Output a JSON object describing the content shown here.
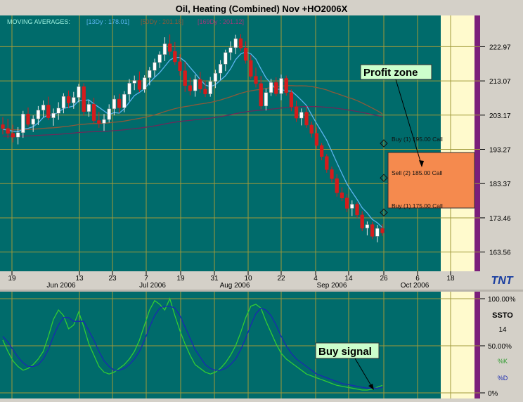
{
  "window": {
    "title": "Oil, Heating (Combined) Nov +HO2006X",
    "indicator_header": "MOVING AVERAGES:",
    "ma_labels": [
      {
        "text": "[13Dy : 178.01]",
        "color": "#5ab4f0"
      },
      {
        "text": "[50Dy : 201.18]",
        "color": "#8a5a3a"
      },
      {
        "text": "[169Dy : 201.12]",
        "color": "#9a3a7a"
      }
    ],
    "logo": "TNT"
  },
  "colors": {
    "bg": "#006b6b",
    "grid": "#a09a3a",
    "up": "#ffffff",
    "down": "#d41c1c",
    "ma13": "#5ab4f0",
    "ma50": "#8a5a3a",
    "ma169": "#6a2a5a",
    "profit_zone": "#f58a4e",
    "pale": "#fffacd",
    "purple": "#7b1f7b",
    "stoch_k": "#33cc33",
    "stoch_d": "#1a2ab0",
    "label_box": "#ccffcc"
  },
  "annotations": {
    "profit_zone": "Profit zone",
    "buy_signal": "Buy signal",
    "legs": [
      "Buy (1) 195.00 Call",
      "Sell (2) 185.00 Call",
      "Buy (1) 175.00 Call"
    ]
  },
  "x_axis": {
    "ticks": [
      "19",
      "13",
      "23",
      "7",
      "19",
      "31",
      "10",
      "22",
      "4",
      "14",
      "26",
      "6",
      "18"
    ],
    "months": [
      "Jun 2006",
      "Jul 2006",
      "Aug 2006",
      "Sep 2006",
      "Oct 2006"
    ]
  },
  "price_axis": [
    "222.97",
    "213.07",
    "203.17",
    "193.27",
    "183.37",
    "173.46",
    "163.56"
  ],
  "stoch_panel": {
    "name": "SSTO",
    "period": "14",
    "k_label": "%K",
    "d_label": "%D",
    "levels": [
      "100.00%",
      "50.00%",
      "0%"
    ]
  },
  "chart_data": {
    "type": "candlestick",
    "title": "Oil, Heating (Combined) Nov +HO2006X",
    "ylim": [
      158,
      232
    ],
    "candles": [
      [
        200.4,
        202.6,
        197.6,
        199.3
      ],
      [
        199.3,
        202.1,
        196.5,
        197.9
      ],
      [
        197.9,
        200.4,
        195.3,
        196.8
      ],
      [
        196.8,
        199.7,
        194.7,
        198.1
      ],
      [
        198.1,
        204.4,
        196.6,
        203.5
      ],
      [
        203.5,
        205.4,
        199.9,
        200.5
      ],
      [
        200.5,
        203.1,
        198.3,
        202.1
      ],
      [
        202.1,
        205.8,
        200.3,
        204.6
      ],
      [
        204.6,
        207.4,
        202.6,
        206.1
      ],
      [
        206.1,
        208.5,
        201.7,
        202.4
      ],
      [
        202.4,
        205.1,
        200.1,
        203.7
      ],
      [
        203.7,
        206.9,
        201.8,
        205.2
      ],
      [
        205.2,
        209.5,
        203.7,
        208.6
      ],
      [
        208.6,
        210.3,
        205.2,
        206.7
      ],
      [
        206.7,
        209.9,
        205.0,
        208.3
      ],
      [
        208.3,
        212.2,
        206.9,
        211.4
      ],
      [
        211.4,
        212.4,
        203.0,
        204.2
      ],
      [
        204.2,
        207.5,
        202.7,
        206.3
      ],
      [
        206.3,
        208.2,
        200.7,
        201.6
      ],
      [
        201.6,
        204.1,
        199.5,
        200.8
      ],
      [
        200.8,
        203.5,
        198.6,
        201.9
      ],
      [
        201.9,
        206.3,
        201.0,
        205.0
      ],
      [
        205.0,
        208.9,
        203.1,
        207.8
      ],
      [
        207.8,
        209.3,
        203.8,
        205.3
      ],
      [
        205.3,
        210.1,
        204.0,
        209.2
      ],
      [
        209.2,
        213.6,
        207.3,
        212.4
      ],
      [
        212.4,
        214.6,
        210.4,
        213.2
      ],
      [
        213.2,
        215.8,
        209.8,
        210.6
      ],
      [
        210.6,
        214.7,
        209.7,
        214.0
      ],
      [
        214.0,
        217.1,
        211.8,
        216.1
      ],
      [
        216.1,
        219.5,
        214.3,
        218.4
      ],
      [
        218.4,
        221.6,
        216.8,
        220.7
      ],
      [
        220.7,
        225.7,
        218.8,
        223.8
      ],
      [
        223.8,
        226.5,
        220.5,
        221.6
      ],
      [
        221.6,
        224.3,
        217.7,
        218.6
      ],
      [
        218.6,
        220.8,
        214.6,
        216.0
      ],
      [
        216.0,
        218.6,
        209.9,
        211.7
      ],
      [
        211.7,
        214.0,
        208.9,
        210.2
      ],
      [
        210.2,
        214.8,
        208.5,
        213.5
      ],
      [
        213.5,
        215.7,
        209.6,
        210.7
      ],
      [
        210.7,
        213.2,
        208.4,
        209.3
      ],
      [
        209.3,
        214.2,
        208.5,
        212.9
      ],
      [
        212.9,
        216.3,
        211.0,
        215.3
      ],
      [
        215.3,
        219.1,
        213.4,
        217.9
      ],
      [
        217.9,
        222.1,
        215.9,
        221.3
      ],
      [
        221.3,
        224.5,
        219.1,
        222.7
      ],
      [
        222.7,
        226.4,
        220.8,
        225.3
      ],
      [
        225.3,
        226.6,
        221.7,
        222.6
      ],
      [
        222.6,
        224.5,
        218.1,
        219.0
      ],
      [
        219.0,
        220.6,
        213.7,
        214.4
      ],
      [
        214.4,
        216.9,
        211.2,
        212.3
      ],
      [
        212.3,
        214.5,
        204.9,
        205.8
      ],
      [
        205.8,
        210.9,
        204.5,
        209.7
      ],
      [
        209.7,
        213.7,
        208.7,
        212.6
      ],
      [
        212.6,
        214.1,
        208.6,
        209.4
      ],
      [
        209.4,
        214.9,
        207.5,
        213.8
      ],
      [
        213.8,
        214.6,
        208.8,
        209.7
      ],
      [
        209.7,
        210.6,
        204.3,
        205.6
      ],
      [
        205.6,
        207.3,
        201.2,
        202.3
      ],
      [
        202.3,
        205.1,
        200.2,
        204.0
      ],
      [
        204.0,
        205.8,
        199.5,
        200.3
      ],
      [
        200.3,
        201.3,
        196.7,
        197.9
      ],
      [
        197.9,
        199.6,
        193.4,
        194.4
      ],
      [
        194.4,
        195.1,
        190.1,
        191.2
      ],
      [
        191.2,
        191.9,
        186.5,
        187.4
      ],
      [
        187.4,
        188.3,
        183.7,
        184.8
      ],
      [
        184.8,
        186.1,
        179.6,
        180.7
      ],
      [
        180.7,
        182.3,
        178.3,
        179.2
      ],
      [
        179.2,
        180.3,
        175.1,
        176.2
      ],
      [
        176.2,
        178.5,
        174.0,
        177.4
      ],
      [
        177.4,
        178.0,
        173.4,
        174.3
      ],
      [
        174.3,
        175.4,
        169.6,
        170.5
      ],
      [
        170.5,
        172.4,
        168.4,
        171.5
      ],
      [
        171.5,
        172.3,
        167.3,
        168.1
      ],
      [
        168.1,
        171.4,
        166.4,
        170.4
      ],
      [
        170.4,
        171.6,
        168.2,
        169.1
      ]
    ],
    "stochastic": {
      "levels": [
        100,
        50,
        0
      ],
      "k": [
        56,
        44,
        34,
        28,
        24,
        26,
        30,
        36,
        44,
        60,
        78,
        88,
        82,
        68,
        72,
        86,
        70,
        52,
        40,
        28,
        22,
        20,
        22,
        26,
        30,
        36,
        44,
        56,
        72,
        88,
        98,
        94,
        88,
        100,
        82,
        66,
        52,
        40,
        30,
        26,
        22,
        20,
        22,
        26,
        32,
        40,
        50,
        64,
        80,
        92,
        94,
        90,
        76,
        64,
        52,
        42,
        36,
        32,
        28,
        24,
        20,
        18,
        16,
        14,
        12,
        10,
        8,
        7,
        6,
        5,
        4,
        3,
        3,
        4,
        6,
        8
      ],
      "d": [
        60,
        54,
        46,
        38,
        32,
        28,
        28,
        30,
        36,
        46,
        60,
        72,
        80,
        80,
        76,
        76,
        76,
        66,
        56,
        44,
        34,
        28,
        24,
        24,
        26,
        30,
        36,
        44,
        56,
        70,
        82,
        90,
        92,
        92,
        90,
        82,
        70,
        58,
        46,
        38,
        30,
        26,
        24,
        24,
        26,
        30,
        36,
        46,
        58,
        72,
        84,
        90,
        88,
        82,
        72,
        60,
        50,
        42,
        36,
        32,
        28,
        24,
        20,
        18,
        16,
        14,
        12,
        10,
        9,
        8,
        7,
        6,
        5,
        5,
        5,
        6
      ]
    }
  }
}
